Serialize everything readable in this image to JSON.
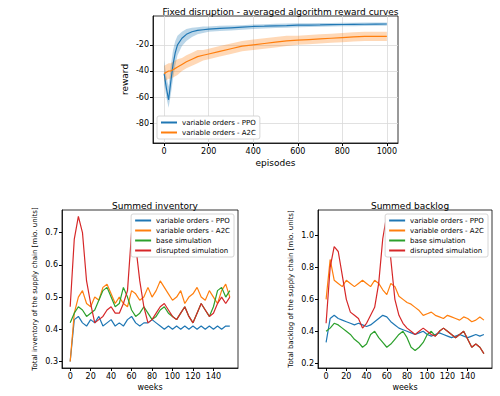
{
  "chart_data": [
    {
      "type": "line",
      "title": "Fixed disruption - averaged algorithm reward curves",
      "x_label": "episodes",
      "y_label": "reward",
      "xlim": [
        -50,
        1050
      ],
      "xticks": [
        0,
        200,
        400,
        600,
        800,
        1000
      ],
      "ylim": [
        -95,
        2
      ],
      "yticks": [
        -80,
        -60,
        -40,
        -20
      ],
      "grid": true,
      "legend": "lower left",
      "x": [
        0,
        10,
        20,
        30,
        40,
        50,
        60,
        80,
        100,
        125,
        150,
        175,
        200,
        250,
        300,
        350,
        400,
        450,
        500,
        550,
        600,
        650,
        700,
        750,
        800,
        850,
        900,
        950,
        1000
      ],
      "series": [
        {
          "name": "variable orders - PPO",
          "color": "#1f77b4",
          "values": [
            -42,
            -53,
            -62,
            -48,
            -35,
            -26,
            -20,
            -15,
            -12,
            -10,
            -9,
            -8.5,
            -8,
            -7.5,
            -7,
            -6.5,
            -6,
            -5.8,
            -5.5,
            -5.3,
            -5,
            -4.9,
            -4.8,
            -4.6,
            -4.5,
            -4.4,
            -4.3,
            -4.2,
            -4.1
          ],
          "lower": [
            -50,
            -60,
            -68,
            -58,
            -46,
            -36,
            -28,
            -21,
            -17,
            -14,
            -12,
            -11,
            -10,
            -9.5,
            -9,
            -8.5,
            -8,
            -7.6,
            -7.2,
            -7,
            -6.6,
            -6.4,
            -6.2,
            -6,
            -5.9,
            -5.8,
            -5.6,
            -5.5,
            -5.4
          ],
          "upper": [
            -32,
            -44,
            -52,
            -36,
            -24,
            -17,
            -13,
            -10,
            -8,
            -7,
            -6.5,
            -6,
            -6,
            -5.5,
            -5.2,
            -5,
            -4.5,
            -4.3,
            -4,
            -3.8,
            -3.6,
            -3.5,
            -3.4,
            -3.3,
            -3.2,
            -3.1,
            -3,
            -3,
            -2.9
          ]
        },
        {
          "name": "variable orders - A2C",
          "color": "#ff7f0e",
          "values": [
            -42,
            -41,
            -40,
            -40,
            -39,
            -38,
            -37,
            -35,
            -33,
            -31,
            -29,
            -28,
            -27,
            -25,
            -23,
            -21,
            -20,
            -19,
            -18,
            -17,
            -16.5,
            -16,
            -15.5,
            -15,
            -14.5,
            -14,
            -13.5,
            -13.5,
            -13.5
          ],
          "lower": [
            -48,
            -47,
            -46,
            -46,
            -45,
            -44,
            -43,
            -40,
            -38,
            -36,
            -34,
            -32,
            -31,
            -29,
            -27,
            -25,
            -24,
            -23,
            -22,
            -21,
            -20,
            -19.5,
            -19,
            -18.5,
            -18,
            -17.5,
            -17,
            -17,
            -17
          ],
          "upper": [
            -36,
            -35,
            -34,
            -34,
            -33,
            -32,
            -31,
            -30,
            -28,
            -26,
            -24,
            -24,
            -23,
            -21,
            -19,
            -17,
            -16,
            -15,
            -14,
            -13,
            -13,
            -12.5,
            -12,
            -11.5,
            -11,
            -10.5,
            -10,
            -10,
            -10
          ]
        }
      ]
    },
    {
      "type": "line",
      "title": "Summed inventory",
      "x_label": "weeks",
      "y_label": "Total inventory of the supply chain [mio. units]",
      "xlim": [
        -8,
        164
      ],
      "xticks": [
        0,
        20,
        40,
        60,
        80,
        100,
        120,
        140
      ],
      "ylim": [
        0.28,
        0.77
      ],
      "yticks": [
        0.3,
        0.4,
        0.5,
        0.6,
        0.7
      ],
      "grid": false,
      "legend": "upper right",
      "x": [
        0,
        4,
        8,
        12,
        16,
        20,
        24,
        28,
        32,
        36,
        40,
        44,
        48,
        52,
        56,
        60,
        64,
        68,
        72,
        76,
        80,
        84,
        88,
        92,
        96,
        100,
        104,
        108,
        112,
        116,
        120,
        124,
        128,
        132,
        136,
        140,
        144,
        148,
        152,
        156
      ],
      "series": [
        {
          "name": "variable orders - PPO",
          "color": "#1f77b4",
          "values": [
            0.3,
            0.43,
            0.44,
            0.42,
            0.41,
            0.43,
            0.42,
            0.44,
            0.41,
            0.42,
            0.43,
            0.41,
            0.42,
            0.41,
            0.43,
            0.44,
            0.42,
            0.41,
            0.42,
            0.42,
            0.43,
            0.42,
            0.41,
            0.4,
            0.41,
            0.4,
            0.41,
            0.4,
            0.41,
            0.4,
            0.41,
            0.4,
            0.41,
            0.4,
            0.41,
            0.4,
            0.41,
            0.4,
            0.41,
            0.41
          ]
        },
        {
          "name": "variable orders - A2C",
          "color": "#ff7f0e",
          "values": [
            0.3,
            0.45,
            0.5,
            0.52,
            0.48,
            0.47,
            0.5,
            0.49,
            0.53,
            0.54,
            0.51,
            0.48,
            0.5,
            0.48,
            0.47,
            0.52,
            0.51,
            0.49,
            0.5,
            0.53,
            0.5,
            0.52,
            0.55,
            0.53,
            0.51,
            0.49,
            0.5,
            0.52,
            0.48,
            0.5,
            0.51,
            0.53,
            0.5,
            0.49,
            0.52,
            0.5,
            0.48,
            0.52,
            0.54,
            0.5
          ]
        },
        {
          "name": "base simulation",
          "color": "#2ca02c",
          "values": [
            0.42,
            0.45,
            0.47,
            0.46,
            0.44,
            0.45,
            0.46,
            0.49,
            0.52,
            0.53,
            0.5,
            0.47,
            0.48,
            0.53,
            0.5,
            0.46,
            0.44,
            0.45,
            0.47,
            0.45,
            0.43,
            0.44,
            0.46,
            0.47,
            0.45,
            0.44,
            0.43,
            0.45,
            0.47,
            0.44,
            0.42,
            0.45,
            0.48,
            0.46,
            0.44,
            0.47,
            0.52,
            0.53,
            0.5,
            0.52
          ]
        },
        {
          "name": "disrupted simulation",
          "color": "#d62728",
          "values": [
            0.47,
            0.68,
            0.75,
            0.7,
            0.55,
            0.48,
            0.42,
            0.43,
            0.44,
            0.46,
            0.47,
            0.45,
            0.45,
            0.48,
            0.52,
            0.7,
            0.66,
            0.55,
            0.47,
            0.42,
            0.43,
            0.45,
            0.47,
            0.48,
            0.46,
            0.44,
            0.43,
            0.45,
            0.47,
            0.44,
            0.42,
            0.45,
            0.48,
            0.46,
            0.44,
            0.45,
            0.48,
            0.5,
            0.48,
            0.5
          ]
        }
      ]
    },
    {
      "type": "line",
      "title": "Summed backlog",
      "x_label": "weeks",
      "y_label": "Total backlog of the supply chain [mio. units]",
      "xlim": [
        -8,
        164
      ],
      "xticks": [
        0,
        20,
        40,
        60,
        80,
        100,
        120,
        140
      ],
      "ylim": [
        0.17,
        1.16
      ],
      "yticks": [
        0.2,
        0.4,
        0.6,
        0.8,
        {
          "value": 1,
          "label": "1.0"
        }
      ],
      "grid": false,
      "legend": "upper right",
      "x": [
        0,
        4,
        8,
        12,
        16,
        20,
        24,
        28,
        32,
        36,
        40,
        44,
        48,
        52,
        56,
        60,
        64,
        68,
        72,
        76,
        80,
        84,
        88,
        92,
        96,
        100,
        104,
        108,
        112,
        116,
        120,
        124,
        128,
        132,
        136,
        140,
        144,
        148,
        152,
        156
      ],
      "series": [
        {
          "name": "variable orders - PPO",
          "color": "#1f77b4",
          "values": [
            0.33,
            0.48,
            0.5,
            0.48,
            0.47,
            0.46,
            0.45,
            0.44,
            0.45,
            0.44,
            0.43,
            0.44,
            0.46,
            0.48,
            0.5,
            0.49,
            0.46,
            0.44,
            0.42,
            0.41,
            0.4,
            0.39,
            0.38,
            0.39,
            0.4,
            0.38,
            0.37,
            0.38,
            0.39,
            0.38,
            0.37,
            0.36,
            0.37,
            0.38,
            0.37,
            0.36,
            0.37,
            0.38,
            0.37,
            0.38
          ]
        },
        {
          "name": "variable orders - A2C",
          "color": "#ff7f0e",
          "values": [
            0.6,
            0.85,
            0.72,
            0.7,
            0.68,
            0.72,
            0.7,
            0.68,
            0.7,
            0.72,
            0.7,
            0.68,
            0.72,
            0.7,
            0.66,
            0.63,
            0.7,
            0.68,
            0.62,
            0.6,
            0.58,
            0.57,
            0.55,
            0.53,
            0.5,
            0.51,
            0.52,
            0.5,
            0.49,
            0.48,
            0.5,
            0.49,
            0.48,
            0.47,
            0.49,
            0.48,
            0.46,
            0.47,
            0.49,
            0.47
          ]
        },
        {
          "name": "base simulation",
          "color": "#2ca02c",
          "values": [
            0.4,
            0.42,
            0.45,
            0.44,
            0.42,
            0.4,
            0.38,
            0.35,
            0.33,
            0.3,
            0.32,
            0.38,
            0.4,
            0.36,
            0.33,
            0.3,
            0.32,
            0.35,
            0.38,
            0.4,
            0.36,
            0.3,
            0.28,
            0.3,
            0.33,
            0.38,
            0.4,
            0.37,
            0.4,
            0.42,
            0.4,
            0.38,
            0.36,
            0.38,
            0.4,
            0.35,
            0.3,
            0.32,
            0.3,
            0.26
          ]
        },
        {
          "name": "disrupted simulation",
          "color": "#d62728",
          "values": [
            0.45,
            0.8,
            0.93,
            0.9,
            0.75,
            0.6,
            0.52,
            0.5,
            0.48,
            0.42,
            0.45,
            0.5,
            0.55,
            0.7,
            0.98,
            1.13,
            0.85,
            0.6,
            0.5,
            0.45,
            0.42,
            0.4,
            0.38,
            0.4,
            0.42,
            0.4,
            0.38,
            0.37,
            0.4,
            0.42,
            0.4,
            0.38,
            0.36,
            0.38,
            0.4,
            0.35,
            0.3,
            0.32,
            0.3,
            0.26
          ]
        }
      ]
    }
  ]
}
